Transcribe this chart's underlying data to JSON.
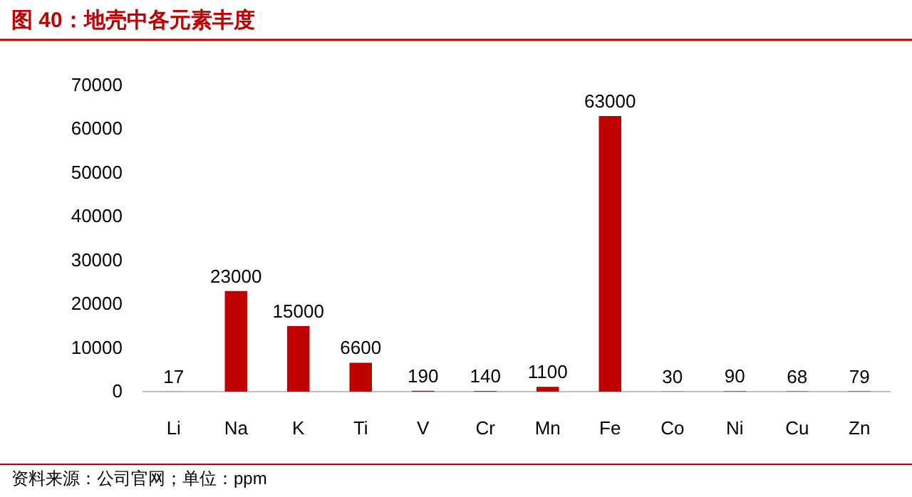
{
  "chart_data": {
    "type": "bar",
    "title": "图 40：地壳中各元素丰度",
    "categories": [
      "Li",
      "Na",
      "K",
      "Ti",
      "V",
      "Cr",
      "Mn",
      "Fe",
      "Co",
      "Ni",
      "Cu",
      "Zn"
    ],
    "values": [
      17,
      23000,
      15000,
      6600,
      190,
      140,
      1100,
      63000,
      30,
      90,
      68,
      79
    ],
    "color": "#c00000",
    "ylim": [
      0,
      70000
    ],
    "yticks": [
      0,
      10000,
      20000,
      30000,
      40000,
      50000,
      60000,
      70000
    ],
    "data_labels": true,
    "annotations": [
      "资料来源：公司官网；单位：ppm"
    ]
  }
}
